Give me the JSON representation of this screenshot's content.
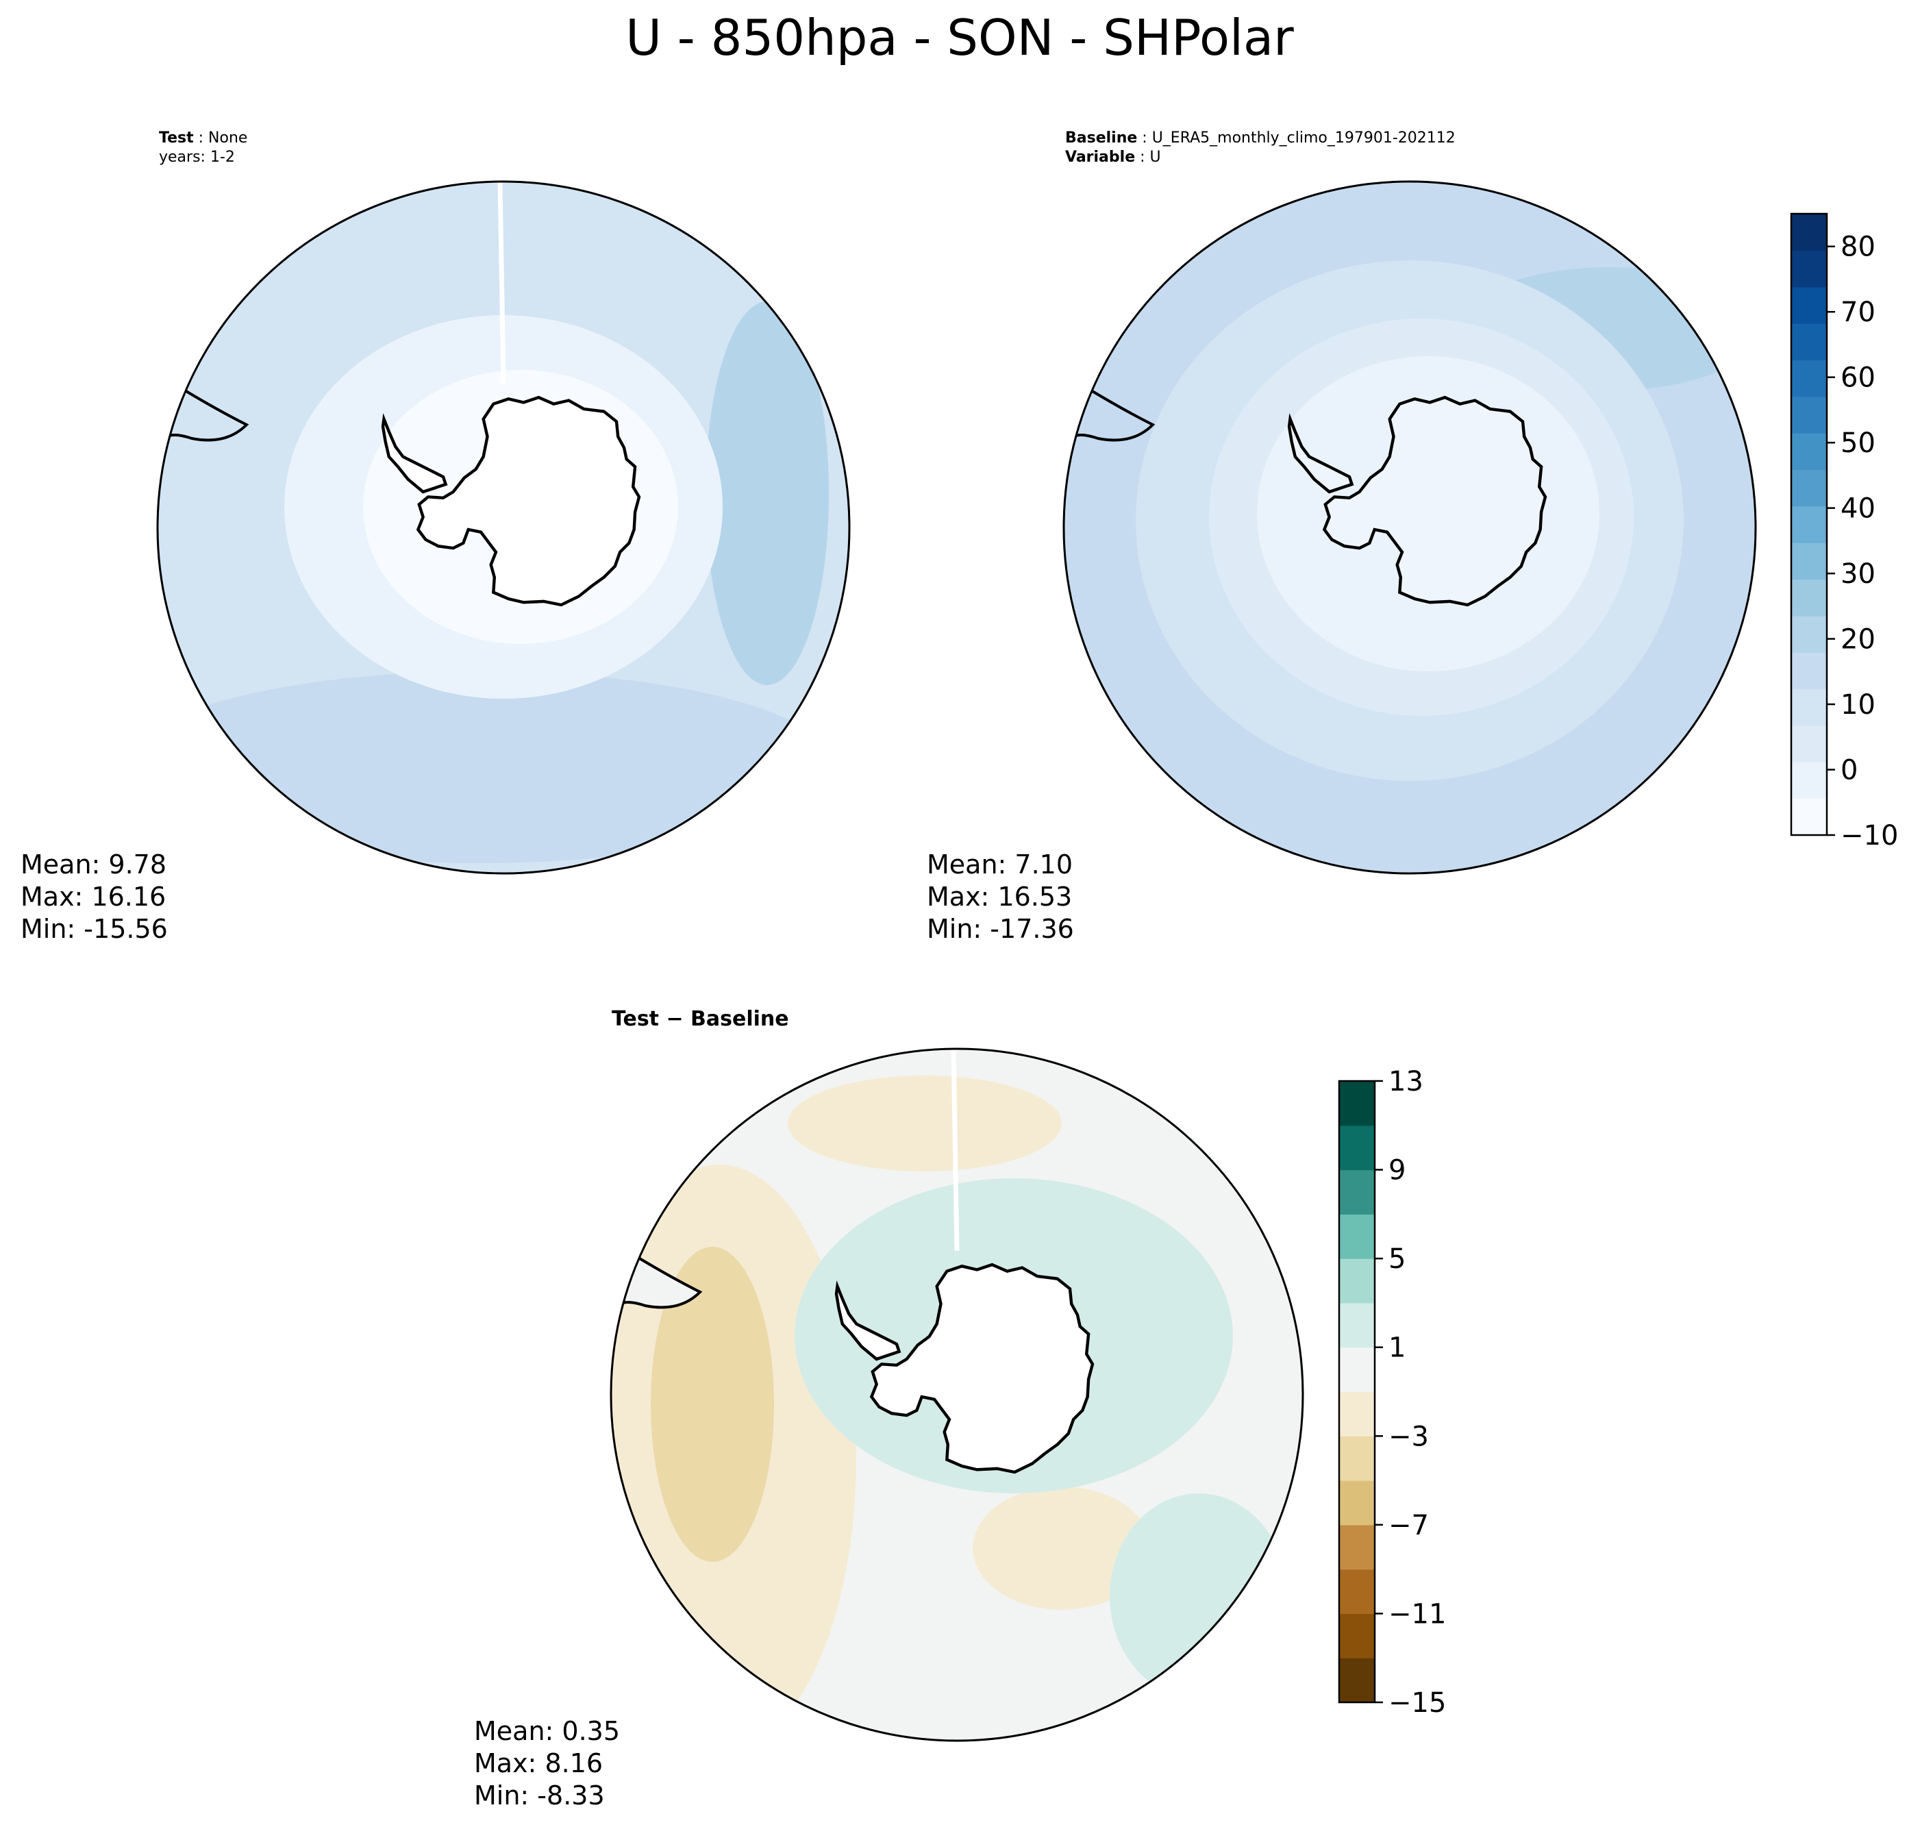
{
  "title": "U - 850hpa - SON - SHPolar",
  "colors": {
    "continent_fill": "#ffffff",
    "blues": [
      "#f7fbff",
      "#eaf3fb",
      "#deebf7",
      "#d3e4f3",
      "#c6dbef",
      "#b4d4ea",
      "#9ecae1",
      "#84bcdc",
      "#6baed6",
      "#529dcc",
      "#4292c6",
      "#3080bd",
      "#2171b5",
      "#1361a9",
      "#08519c",
      "#083c7e",
      "#08306b"
    ],
    "diverging": [
      "#603a06",
      "#8a510b",
      "#a96a1f",
      "#c48c43",
      "#dcc07a",
      "#ebd9a8",
      "#f5ebd3",
      "#f2f4f3",
      "#d4ece8",
      "#a7dbd1",
      "#6cbfb3",
      "#359289",
      "#0b6f66",
      "#00493e"
    ]
  },
  "chart_data": [
    {
      "type": "heatmap",
      "projection": "south-polar-stereographic",
      "panel": "test",
      "label_lines": [
        {
          "bold": "Test",
          "rest": " : None"
        },
        {
          "bold": "",
          "rest": "years: 1-2"
        }
      ],
      "stats": {
        "mean": "Mean:  9.78",
        "max": "Max: 16.16",
        "min": "Min: -15.56"
      }
    },
    {
      "type": "heatmap",
      "projection": "south-polar-stereographic",
      "panel": "baseline",
      "label_lines": [
        {
          "bold": "Baseline",
          "rest": " : U_ERA5_monthly_climo_197901-202112"
        },
        {
          "bold": "Variable",
          "rest": " : U"
        }
      ],
      "stats": {
        "mean": "Mean:  7.10",
        "max": "Max: 16.53",
        "min": "Min: -17.36"
      },
      "colorbar": {
        "range": [
          -10,
          85
        ],
        "levels": 17,
        "ticks": [
          -10,
          0,
          10,
          20,
          30,
          40,
          50,
          60,
          70,
          80
        ],
        "tick_labels": [
          "−10",
          "0",
          "10",
          "20",
          "30",
          "40",
          "50",
          "60",
          "70",
          "80"
        ]
      }
    },
    {
      "type": "heatmap",
      "projection": "south-polar-stereographic",
      "panel": "difference",
      "label_lines": [
        {
          "bold": "Test − Baseline",
          "rest": ""
        }
      ],
      "stats": {
        "mean": "Mean:  0.35",
        "max": "Max:  8.16",
        "min": "Min: -8.33"
      },
      "colorbar": {
        "range": [
          -15,
          13
        ],
        "levels": 14,
        "ticks": [
          -15,
          -11,
          -7,
          -3,
          1,
          5,
          9,
          13
        ],
        "tick_labels": [
          "−15",
          "−11",
          "−7",
          "−3",
          "1",
          "5",
          "9",
          "13"
        ]
      }
    }
  ]
}
